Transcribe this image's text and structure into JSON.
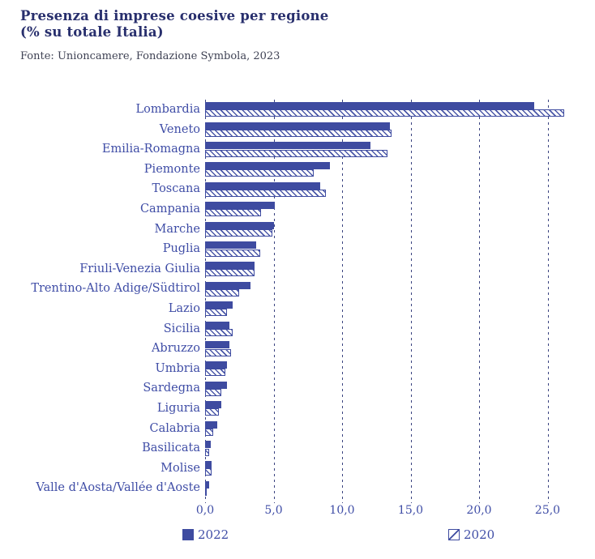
{
  "header": {
    "title_line1": "Presenza di imprese coesive per regione",
    "title_line2": "(% su totale Italia)",
    "source": "Fonte: Unioncamere, Fondazione Symbola, 2023"
  },
  "colors": {
    "bar_solid": "#3e4ba0",
    "hatch_line": "#4b58a8",
    "label_text": "#3f4da6",
    "title_text": "#282f6d",
    "source_text": "#3f4254",
    "grid_line": "#3a4380",
    "background": "#ffffff"
  },
  "chart_data": {
    "type": "bar",
    "orientation": "horizontal",
    "title": "Presenza di imprese coesive per regione (% su totale Italia)",
    "categories": [
      "Lombardia",
      "Veneto",
      "Emilia-Romagna",
      "Piemonte",
      "Toscana",
      "Campania",
      "Marche",
      "Puglia",
      "Friuli-Venezia Giulia",
      "Trentino-Alto Adige/Südtirol",
      "Lazio",
      "Sicilia",
      "Abruzzo",
      "Umbria",
      "Sardegna",
      "Liguria",
      "Calabria",
      "Basilicata",
      "Molise",
      "Valle d'Aosta/Vallée d'Aoste"
    ],
    "series": [
      {
        "name": "2022",
        "style": "solid",
        "values": [
          24.0,
          13.5,
          12.1,
          9.1,
          8.4,
          5.1,
          5.0,
          3.7,
          3.6,
          3.3,
          2.0,
          1.8,
          1.8,
          1.6,
          1.6,
          1.2,
          0.9,
          0.4,
          0.5,
          0.3
        ]
      },
      {
        "name": "2020",
        "style": "hatched",
        "values": [
          26.2,
          13.6,
          13.3,
          7.9,
          8.8,
          4.1,
          4.9,
          4.0,
          3.6,
          2.5,
          1.6,
          2.0,
          1.9,
          1.5,
          1.2,
          1.0,
          0.6,
          0.3,
          0.5,
          0.1
        ]
      }
    ],
    "x_ticks": [
      0,
      5,
      10,
      15,
      20,
      25
    ],
    "x_tick_labels": [
      "0,0",
      "5,0",
      "10,0",
      "15,0",
      "20,0",
      "25,0"
    ],
    "xlim": [
      0,
      27
    ],
    "grid": "vertical-dashed",
    "legend_position": "bottom",
    "legend": [
      "2022",
      "2020"
    ]
  }
}
